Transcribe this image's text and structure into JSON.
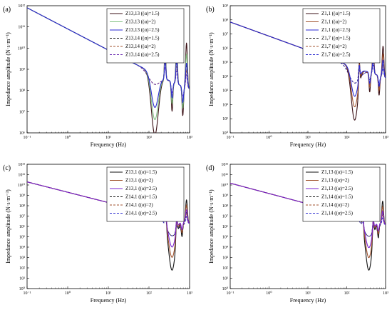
{
  "chart_data": [
    {
      "type": "line",
      "panel": "(a)",
      "xlabel": "Frequency (Hz)",
      "ylabel": "Impedance amplitude (N·s·m⁻¹)",
      "xscale": "log",
      "yscale": "log",
      "xlim": [
        0.1,
        1000
      ],
      "ylim": [
        1000000,
        1000000000000
      ],
      "x_ticks": [
        "10⁻¹",
        "10⁰",
        "10¹",
        "10²",
        "10³"
      ],
      "y_ticks": [
        "10⁶",
        "10⁷",
        "10⁸",
        "10⁹",
        "10¹⁰",
        "10¹¹",
        "10¹²"
      ],
      "model": {
        "a": 80000000000.0,
        "b": 40000000,
        "res": [
          250,
          480,
          840
        ],
        "anti": [
          140,
          370,
          680
        ],
        "dip": 800000.0,
        "soft_dip": 90000000.0
      },
      "legend_position": "top-right",
      "series": [
        {
          "name": "Z13,13 ((α)=1.5)",
          "color": "#3a0f14",
          "style": "solid",
          "variant": "point"
        },
        {
          "name": "Z13,13 ((α)=2)",
          "color": "#7fbf7f",
          "style": "solid",
          "variant": "point"
        },
        {
          "name": "Z13,13 ((α)=2.5)",
          "color": "#2a2ad0",
          "style": "solid",
          "variant": "point"
        },
        {
          "name": "Z13,14 ((α)=1.5)",
          "color": "#111111",
          "style": "dashed",
          "variant": "transfer"
        },
        {
          "name": "Z13,14 ((α)=2)",
          "color": "#a0522d",
          "style": "dashed",
          "variant": "transfer"
        },
        {
          "name": "Z13,14 ((α)=2.5)",
          "color": "#6a2ab0",
          "style": "dashed",
          "variant": "transfer"
        }
      ]
    },
    {
      "type": "line",
      "panel": "(b)",
      "xlabel": "Frequency (Hz)",
      "ylabel": "Impedance amplitude (N·s·m⁻¹)",
      "xscale": "log",
      "yscale": "log",
      "xlim": [
        0.1,
        1000
      ],
      "ylim": [
        1,
        1000000000
      ],
      "x_ticks": [
        "10⁻¹",
        "10⁰",
        "10¹",
        "10²",
        "10³"
      ],
      "y_ticks": [
        "10⁰",
        "10¹",
        "10²",
        "10³",
        "10⁴",
        "10⁵",
        "10⁶",
        "10⁷",
        "10⁸",
        "10⁹"
      ],
      "model": {
        "a": 7000000,
        "b": 1000,
        "res": [
          210,
          480,
          860
        ],
        "anti": [
          160,
          390,
          680
        ],
        "dip": 8,
        "soft_dip": 600
      },
      "legend_position": "top-right",
      "series": [
        {
          "name": "Z1,1 ((α)=1.5)",
          "color": "#3a0f14",
          "style": "solid",
          "variant": "point"
        },
        {
          "name": "Z1,1 ((α)=2)",
          "color": "#a0522d",
          "style": "solid",
          "variant": "point"
        },
        {
          "name": "Z1,1 ((α)=2.5)",
          "color": "#2a2ad0",
          "style": "solid",
          "variant": "point"
        },
        {
          "name": "Z1,7 ((α)=1.5)",
          "color": "#111111",
          "style": "dashed",
          "variant": "transfer"
        },
        {
          "name": "Z1,7 ((α)=2)",
          "color": "#a0522d",
          "style": "dashed",
          "variant": "transfer"
        },
        {
          "name": "Z1,7 ((α)=2.5)",
          "color": "#2a2ad0",
          "style": "dashed",
          "variant": "transfer"
        }
      ]
    },
    {
      "type": "line",
      "panel": "(c)",
      "xlabel": "Frequency (Hz)",
      "ylabel": "Impedance amplitude (N·s·m⁻³)",
      "xscale": "log",
      "yscale": "log",
      "xlim": [
        0.1,
        1000
      ],
      "ylim": [
        1,
        1000000000000
      ],
      "x_ticks": [
        "10⁻¹",
        "10⁰",
        "10¹",
        "10²",
        "10³"
      ],
      "y_ticks": [
        "10⁰",
        "10¹",
        "10²",
        "10³",
        "10⁴",
        "10⁵",
        "10⁶",
        "10⁷",
        "10⁸",
        "10⁹",
        "10¹⁰",
        "10¹¹",
        "10¹²"
      ],
      "model": {
        "a": 2000000000,
        "b": 50000,
        "res": [
          260,
          480,
          840
        ],
        "anti": [
          370,
          650
        ],
        "dip": 60,
        "soft_dip": 10000
      },
      "legend_position": "top-right",
      "series": [
        {
          "name": "Z13,1 ((α)=1.5)",
          "color": "#111111",
          "style": "solid",
          "variant": "point"
        },
        {
          "name": "Z13,1 ((α)=2)",
          "color": "#a0522d",
          "style": "solid",
          "variant": "point"
        },
        {
          "name": "Z13,1 ((α)=2.5)",
          "color": "#7a22d0",
          "style": "solid",
          "variant": "point"
        },
        {
          "name": "Z14,1 ((α)=1.5)",
          "color": "#111111",
          "style": "dashed",
          "variant": "transfer"
        },
        {
          "name": "Z14,1 ((α)=2)",
          "color": "#a0522d",
          "style": "dashed",
          "variant": "transfer"
        },
        {
          "name": "Z14,1 ((α)=2.5)",
          "color": "#2a2ad0",
          "style": "dashed",
          "variant": "transfer"
        }
      ]
    },
    {
      "type": "line",
      "panel": "(d)",
      "xlabel": "Frequency (Hz)",
      "ylabel": "Impedance amplitude (N·s·m⁻¹)",
      "xscale": "log",
      "yscale": "log",
      "xlim": [
        0.1,
        1000
      ],
      "ylim": [
        1,
        1000000000000
      ],
      "x_ticks": [
        "10⁻¹",
        "10⁰",
        "10¹",
        "10²",
        "10³"
      ],
      "y_ticks": [
        "10⁰",
        "10¹",
        "10²",
        "10³",
        "10⁴",
        "10⁵",
        "10⁶",
        "10⁷",
        "10⁸",
        "10⁹",
        "10¹⁰",
        "10¹¹",
        "10¹²"
      ],
      "model": {
        "a": 1500000000,
        "b": 60000,
        "res": [
          260,
          480,
          840
        ],
        "anti": [
          370,
          650
        ],
        "dip": 60,
        "soft_dip": 10000
      },
      "legend_position": "top-right",
      "series": [
        {
          "name": "Z1,13 ((α)=1.5)",
          "color": "#111111",
          "style": "solid",
          "variant": "point"
        },
        {
          "name": "Z1,13 ((α)=2)",
          "color": "#a0522d",
          "style": "solid",
          "variant": "point"
        },
        {
          "name": "Z1,13 ((α)=2.5)",
          "color": "#7a22d0",
          "style": "solid",
          "variant": "point"
        },
        {
          "name": "Z1,14 ((α)=1.5)",
          "color": "#111111",
          "style": "dashed",
          "variant": "transfer"
        },
        {
          "name": "Z1,14 ((α)=2)",
          "color": "#a0522d",
          "style": "dashed",
          "variant": "transfer"
        },
        {
          "name": "Z1,14 ((α)=2.5)",
          "color": "#2a2ad0",
          "style": "dashed",
          "variant": "transfer"
        }
      ]
    }
  ]
}
